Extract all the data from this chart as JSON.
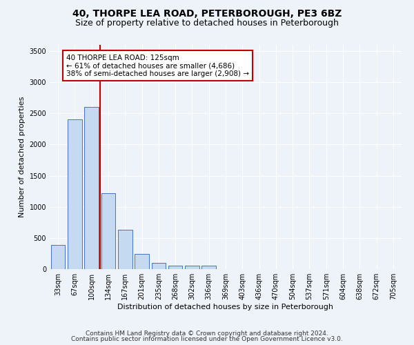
{
  "title": "40, THORPE LEA ROAD, PETERBOROUGH, PE3 6BZ",
  "subtitle": "Size of property relative to detached houses in Peterborough",
  "xlabel": "Distribution of detached houses by size in Peterborough",
  "ylabel": "Number of detached properties",
  "categories": [
    "33sqm",
    "67sqm",
    "100sqm",
    "134sqm",
    "167sqm",
    "201sqm",
    "235sqm",
    "268sqm",
    "302sqm",
    "336sqm",
    "369sqm",
    "403sqm",
    "436sqm",
    "470sqm",
    "504sqm",
    "537sqm",
    "571sqm",
    "604sqm",
    "638sqm",
    "672sqm",
    "705sqm"
  ],
  "bar_heights": [
    390,
    2400,
    2600,
    1220,
    630,
    240,
    100,
    60,
    55,
    50,
    0,
    0,
    0,
    0,
    0,
    0,
    0,
    0,
    0,
    0,
    0
  ],
  "bar_color": "#c5d9f1",
  "bar_edge_color": "#4472c4",
  "vline_color": "#c00000",
  "annotation_text": "40 THORPE LEA ROAD: 125sqm\n← 61% of detached houses are smaller (4,686)\n38% of semi-detached houses are larger (2,908) →",
  "annotation_box_color": "#ffffff",
  "annotation_box_edge_color": "#c00000",
  "ylim": [
    0,
    3600
  ],
  "yticks": [
    0,
    500,
    1000,
    1500,
    2000,
    2500,
    3000,
    3500
  ],
  "footer_line1": "Contains HM Land Registry data © Crown copyright and database right 2024.",
  "footer_line2": "Contains public sector information licensed under the Open Government Licence v3.0.",
  "bg_color": "#eef2f9",
  "plot_bg_color": "#eef2f9",
  "grid_color": "#ffffff",
  "title_fontsize": 10,
  "subtitle_fontsize": 9,
  "label_fontsize": 8,
  "tick_fontsize": 7,
  "footer_fontsize": 6.5
}
